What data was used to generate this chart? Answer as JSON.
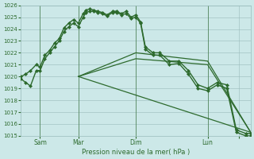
{
  "xlabel": "Pression niveau de la mer( hPa )",
  "bg_color": "#cce8e8",
  "grid_color": "#99bbbb",
  "line_color": "#2d6a2d",
  "ylim": [
    1015,
    1026
  ],
  "ytick_min": 1015,
  "ytick_max": 1026,
  "xlim": [
    0,
    240
  ],
  "x_tick_positions": [
    20,
    60,
    120,
    195,
    228
  ],
  "x_tick_labels": [
    "Sam",
    "Mar",
    "Dim",
    "Lun",
    ""
  ],
  "vline_positions": [
    20,
    60,
    120,
    195
  ],
  "series": [
    {
      "x": [
        0,
        5,
        10,
        16,
        20,
        25,
        30,
        35,
        40,
        45,
        50,
        55,
        60,
        65,
        68,
        72,
        76,
        80,
        85,
        90,
        96,
        100,
        105,
        110,
        115,
        120,
        125,
        130,
        138,
        145,
        155,
        165,
        175,
        185,
        195,
        205,
        215,
        225,
        235,
        240
      ],
      "y": [
        1020.0,
        1020.2,
        1020.5,
        1021.0,
        1020.8,
        1021.8,
        1022.2,
        1022.8,
        1023.2,
        1024.1,
        1024.5,
        1024.8,
        1024.5,
        1025.3,
        1025.6,
        1025.7,
        1025.6,
        1025.5,
        1025.4,
        1025.2,
        1025.5,
        1025.5,
        1025.3,
        1025.5,
        1025.0,
        1025.2,
        1024.6,
        1022.5,
        1022.0,
        1022.0,
        1021.3,
        1021.3,
        1020.5,
        1019.3,
        1019.0,
        1019.5,
        1019.3,
        1015.5,
        1015.2,
        1015.2
      ],
      "marker": "D",
      "markersize": 2.0,
      "linewidth": 1.0
    },
    {
      "x": [
        0,
        5,
        10,
        16,
        20,
        25,
        30,
        35,
        40,
        45,
        50,
        55,
        60,
        65,
        68,
        72,
        76,
        80,
        85,
        90,
        96,
        100,
        105,
        110,
        115,
        120,
        125,
        130,
        138,
        145,
        155,
        165,
        175,
        185,
        195,
        205,
        215,
        225,
        235,
        240
      ],
      "y": [
        1019.8,
        1019.5,
        1019.2,
        1020.5,
        1020.5,
        1021.5,
        1022.0,
        1022.5,
        1023.0,
        1023.8,
        1024.2,
        1024.5,
        1024.2,
        1025.0,
        1025.4,
        1025.5,
        1025.5,
        1025.4,
        1025.3,
        1025.1,
        1025.4,
        1025.4,
        1025.2,
        1025.3,
        1024.9,
        1025.0,
        1024.5,
        1022.3,
        1021.8,
        1021.8,
        1021.0,
        1021.1,
        1020.2,
        1019.0,
        1018.8,
        1019.3,
        1019.0,
        1015.3,
        1015.0,
        1015.0
      ],
      "marker": "D",
      "markersize": 2.0,
      "linewidth": 1.0
    },
    {
      "x": [
        60,
        120,
        195,
        240
      ],
      "y": [
        1020.0,
        1022.0,
        1021.3,
        1015.3
      ],
      "marker": null,
      "linewidth": 0.9
    },
    {
      "x": [
        60,
        120,
        195,
        240
      ],
      "y": [
        1020.0,
        1021.5,
        1021.0,
        1015.3
      ],
      "marker": null,
      "linewidth": 0.9
    },
    {
      "x": [
        60,
        240
      ],
      "y": [
        1020.0,
        1015.3
      ],
      "marker": null,
      "linewidth": 0.9
    }
  ]
}
